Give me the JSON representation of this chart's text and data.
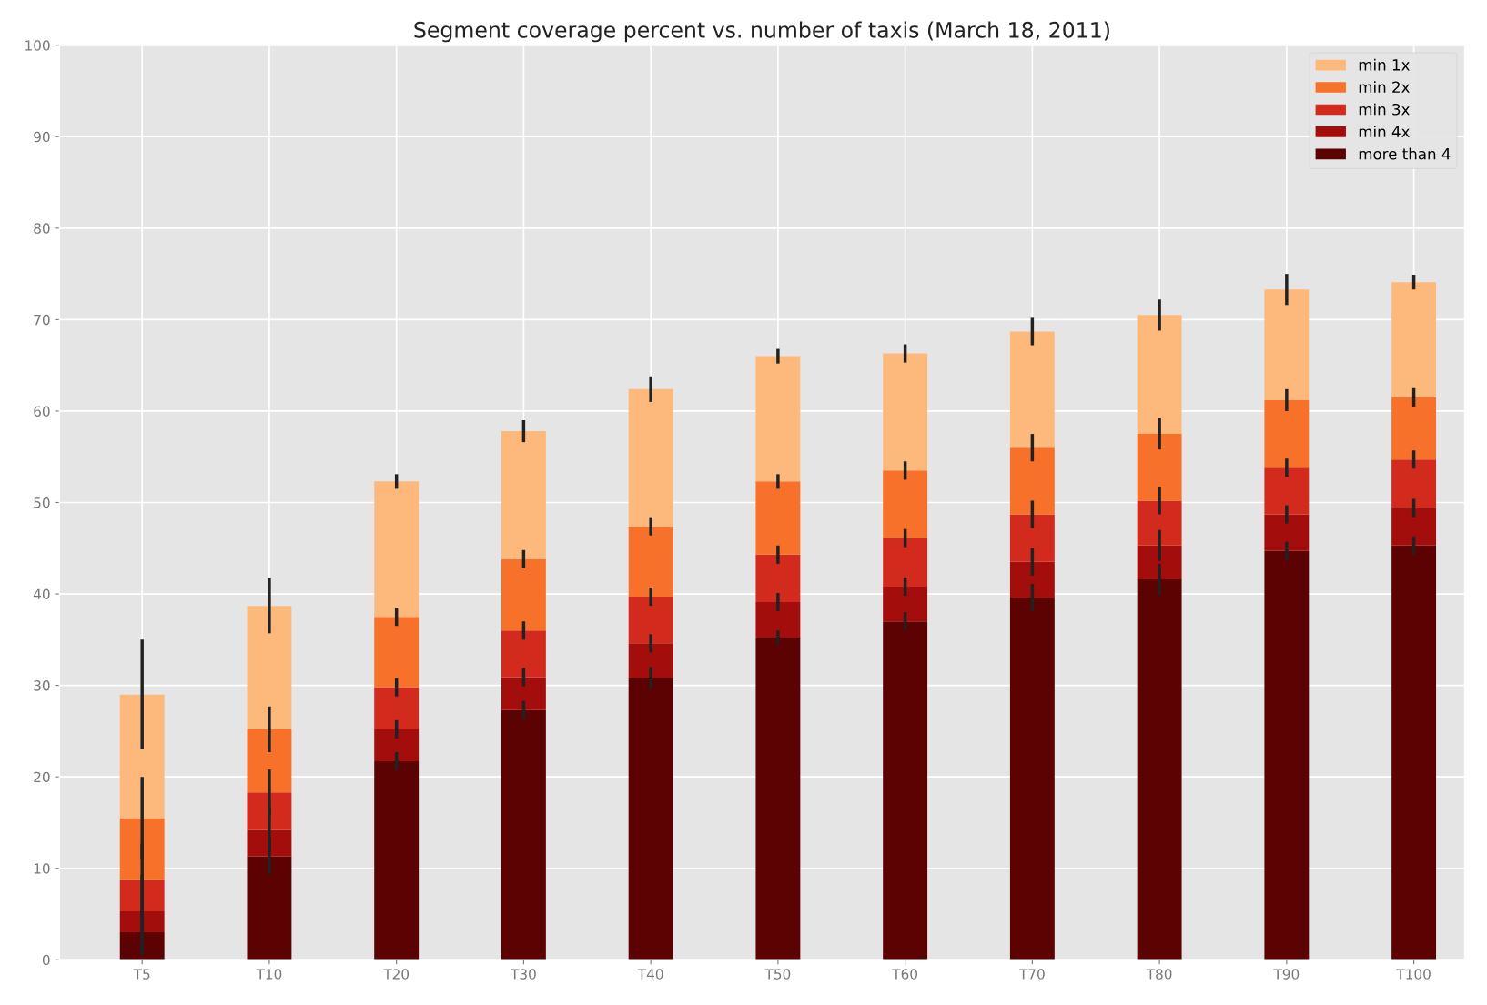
{
  "chart_data": {
    "type": "bar",
    "title": "Segment coverage percent vs. number of taxis (March 18, 2011)",
    "categories": [
      "T5",
      "T10",
      "T20",
      "T30",
      "T40",
      "T50",
      "T60",
      "T70",
      "T80",
      "T90",
      "T100"
    ],
    "stacked": true,
    "ylim": [
      0,
      100
    ],
    "yticks": [
      0,
      10,
      20,
      30,
      40,
      50,
      60,
      70,
      80,
      90,
      100
    ],
    "grid": true,
    "legend": "top right",
    "series": [
      {
        "name": "more than 4",
        "color": "#5c0203",
        "values": [
          3,
          11.3,
          21.7,
          27.3,
          30.8,
          35.2,
          37,
          39.6,
          41.6,
          44.7,
          45.3
        ],
        "errors": [
          2.5,
          2,
          1,
          1,
          1.2,
          0.8,
          1,
          1.5,
          1.7,
          1,
          1
        ]
      },
      {
        "name": "min 4x",
        "color": "#a30d0b",
        "values": [
          2.3,
          2.9,
          3.5,
          3.6,
          3.8,
          3.9,
          3.8,
          3.9,
          3.7,
          4,
          4.1
        ],
        "errors": [
          4,
          2.5,
          1,
          1,
          1,
          1,
          1,
          1.5,
          1.7,
          1,
          1
        ]
      },
      {
        "name": "min 3x",
        "color": "#d32a1e",
        "values": [
          3.4,
          4.1,
          4.6,
          5.1,
          5.1,
          5.2,
          5.3,
          5.2,
          4.9,
          5.1,
          5.3
        ],
        "errors": [
          4,
          2.5,
          1,
          1,
          1,
          1,
          1,
          1.5,
          1.5,
          1,
          1
        ]
      },
      {
        "name": "min 2x",
        "color": "#f7712a",
        "values": [
          6.8,
          6.9,
          7.7,
          7.8,
          7.7,
          8,
          7.4,
          7.3,
          7.3,
          7.4,
          6.8
        ],
        "errors": [
          4.5,
          2.5,
          1,
          1,
          1,
          0.8,
          1,
          1.5,
          1.7,
          1.2,
          1
        ]
      },
      {
        "name": "min 1x",
        "color": "#fdb97b",
        "values": [
          13.5,
          13.5,
          14.8,
          14,
          15,
          13.7,
          12.8,
          12.7,
          13,
          12.1,
          12.6
        ],
        "errors": [
          6,
          3,
          0.8,
          1.2,
          1.4,
          0.8,
          1,
          1.5,
          1.7,
          1.7,
          0.8
        ]
      }
    ]
  }
}
